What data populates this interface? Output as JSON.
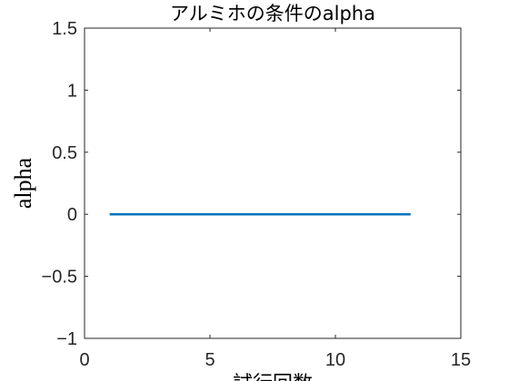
{
  "chart_data": {
    "type": "line",
    "title": "アルミホの条件のalpha",
    "xlabel": "試行回数",
    "ylabel": "alpha",
    "xlim": [
      0,
      15
    ],
    "ylim": [
      -1,
      1.5
    ],
    "xticks": [
      0,
      5,
      10,
      15
    ],
    "xtick_labels": [
      "0",
      "5",
      "10",
      "15"
    ],
    "yticks": [
      -1,
      -0.5,
      0,
      0.5,
      1,
      1.5
    ],
    "ytick_labels": [
      "−1",
      "−0.5",
      "0",
      "0.5",
      "1",
      "1.5"
    ],
    "grid": false,
    "series": [
      {
        "color": "#0072BD",
        "x": [
          1,
          2,
          3,
          4,
          5,
          6,
          7,
          8,
          9,
          10,
          11,
          12,
          13
        ],
        "y": [
          0,
          0,
          0,
          0,
          0,
          0,
          0,
          0,
          0,
          0,
          0,
          0,
          0
        ]
      }
    ]
  }
}
